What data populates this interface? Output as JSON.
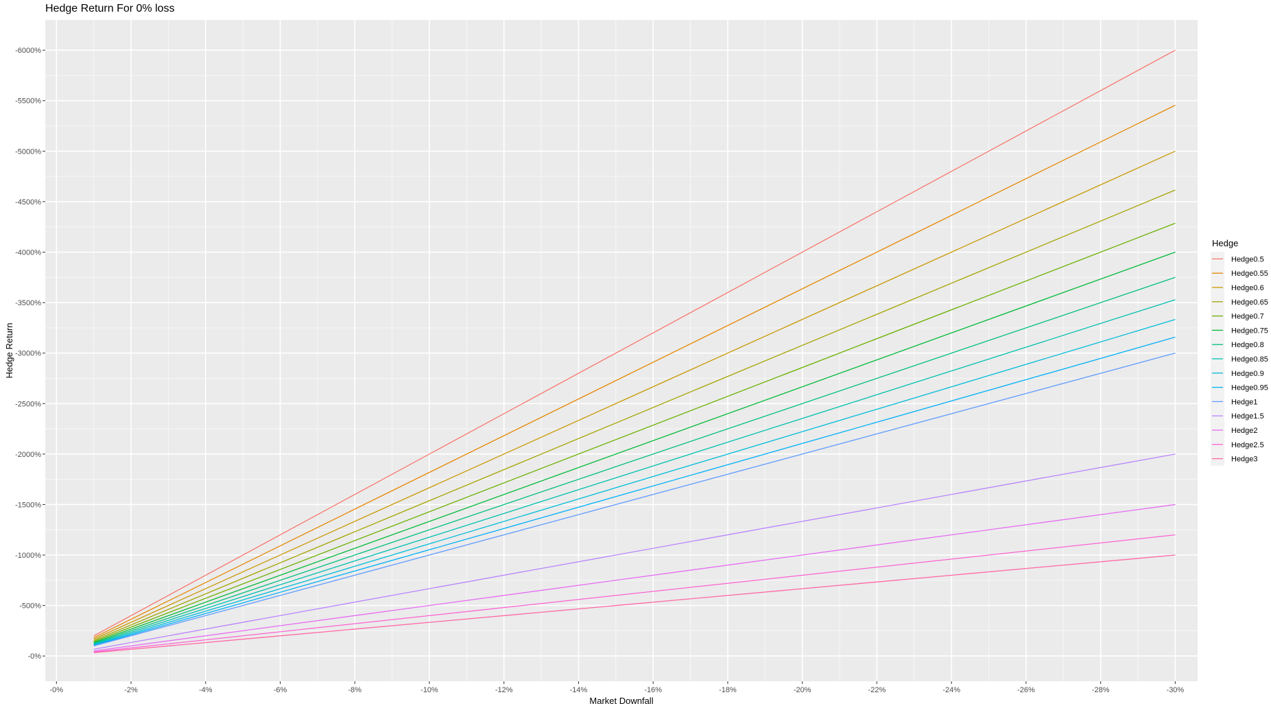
{
  "chart_data": {
    "type": "line",
    "title": "Hedge Return For 0% loss",
    "xlabel": "Market Downfall",
    "ylabel": "Hedge Return",
    "x_ticks": [
      {
        "v": 0,
        "label": "-0%"
      },
      {
        "v": 2,
        "label": "-2%"
      },
      {
        "v": 4,
        "label": "-4%"
      },
      {
        "v": 6,
        "label": "-6%"
      },
      {
        "v": 8,
        "label": "-8%"
      },
      {
        "v": 10,
        "label": "-10%"
      },
      {
        "v": 12,
        "label": "-12%"
      },
      {
        "v": 14,
        "label": "-14%"
      },
      {
        "v": 16,
        "label": "-16%"
      },
      {
        "v": 18,
        "label": "-18%"
      },
      {
        "v": 20,
        "label": "-20%"
      },
      {
        "v": 22,
        "label": "-22%"
      },
      {
        "v": 24,
        "label": "-24%"
      },
      {
        "v": 26,
        "label": "-26%"
      },
      {
        "v": 28,
        "label": "-28%"
      },
      {
        "v": 30,
        "label": "-30%"
      }
    ],
    "y_ticks": [
      {
        "v": 0,
        "label": "-0%"
      },
      {
        "v": 500,
        "label": "-500%"
      },
      {
        "v": 1000,
        "label": "-1000%"
      },
      {
        "v": 1500,
        "label": "-1500%"
      },
      {
        "v": 2000,
        "label": "-2000%"
      },
      {
        "v": 2500,
        "label": "-2500%"
      },
      {
        "v": 3000,
        "label": "-3000%"
      },
      {
        "v": 3500,
        "label": "-3500%"
      },
      {
        "v": 4000,
        "label": "-4000%"
      },
      {
        "v": 4500,
        "label": "-4500%"
      },
      {
        "v": 5000,
        "label": "-5000%"
      },
      {
        "v": 5500,
        "label": "-5500%"
      },
      {
        "v": 6000,
        "label": "-6000%"
      }
    ],
    "xlim": [
      -0.3,
      30.6
    ],
    "ylim": [
      -250,
      6300
    ],
    "grid": true,
    "legend": {
      "title": "Hedge",
      "position": "right"
    },
    "x": [
      1,
      30
    ],
    "series": [
      {
        "name": "Hedge0.5",
        "color": "#F8766D",
        "values": [
          200,
          6000
        ]
      },
      {
        "name": "Hedge0.55",
        "color": "#E58700",
        "values": [
          182,
          5455
        ]
      },
      {
        "name": "Hedge0.6",
        "color": "#C99800",
        "values": [
          167,
          5000
        ]
      },
      {
        "name": "Hedge0.65",
        "color": "#A3A500",
        "values": [
          154,
          4615
        ]
      },
      {
        "name": "Hedge0.7",
        "color": "#6BB100",
        "values": [
          143,
          4286
        ]
      },
      {
        "name": "Hedge0.75",
        "color": "#00BA38",
        "values": [
          133,
          4000
        ]
      },
      {
        "name": "Hedge0.8",
        "color": "#00BF7D",
        "values": [
          125,
          3750
        ]
      },
      {
        "name": "Hedge0.85",
        "color": "#00C0AF",
        "values": [
          118,
          3529
        ]
      },
      {
        "name": "Hedge0.9",
        "color": "#00BCD8",
        "values": [
          111,
          3333
        ]
      },
      {
        "name": "Hedge0.95",
        "color": "#00B0F6",
        "values": [
          105,
          3158
        ]
      },
      {
        "name": "Hedge1",
        "color": "#619CFF",
        "values": [
          100,
          3000
        ]
      },
      {
        "name": "Hedge1.5",
        "color": "#B983FF",
        "values": [
          67,
          2000
        ]
      },
      {
        "name": "Hedge2",
        "color": "#E76BF3",
        "values": [
          50,
          1500
        ]
      },
      {
        "name": "Hedge2.5",
        "color": "#FD61D1",
        "values": [
          40,
          1200
        ]
      },
      {
        "name": "Hedge3",
        "color": "#FF67A4",
        "values": [
          33,
          1000
        ]
      }
    ]
  }
}
